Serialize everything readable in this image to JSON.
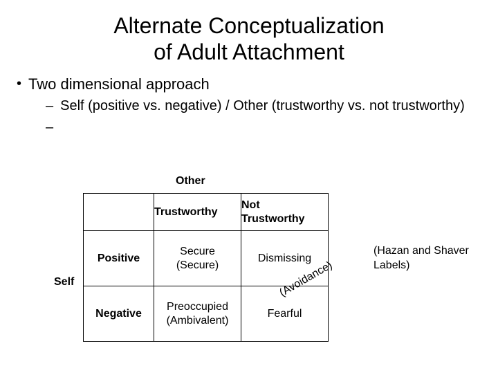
{
  "title_line1": "Alternate Conceptualization",
  "title_line2": "of Adult Attachment",
  "main_bullet": "Two dimensional approach",
  "sub_bullet1": "Self (positive vs. negative) / Other (trustworthy vs. not trustworthy)",
  "sub_bullet2": "",
  "matrix": {
    "top_label": "Other",
    "side_label": "Self",
    "col1": "Trustworthy",
    "col2_line1": "Not",
    "col2_line2": "Trustworthy",
    "row1": "Positive",
    "row2": "Negative",
    "cell_11_line1": "Secure",
    "cell_11_line2": "(Secure)",
    "cell_12": "Dismissing",
    "cell_21_line1": "Preoccupied",
    "cell_21_line2": "(Ambivalent)",
    "cell_22": "Fearful",
    "annotation": "(Avoidance)",
    "note_line1": "(Hazan and Shaver",
    "note_line2": "Labels)"
  },
  "colors": {
    "background": "#ffffff",
    "text": "#000000",
    "border": "#000000"
  }
}
